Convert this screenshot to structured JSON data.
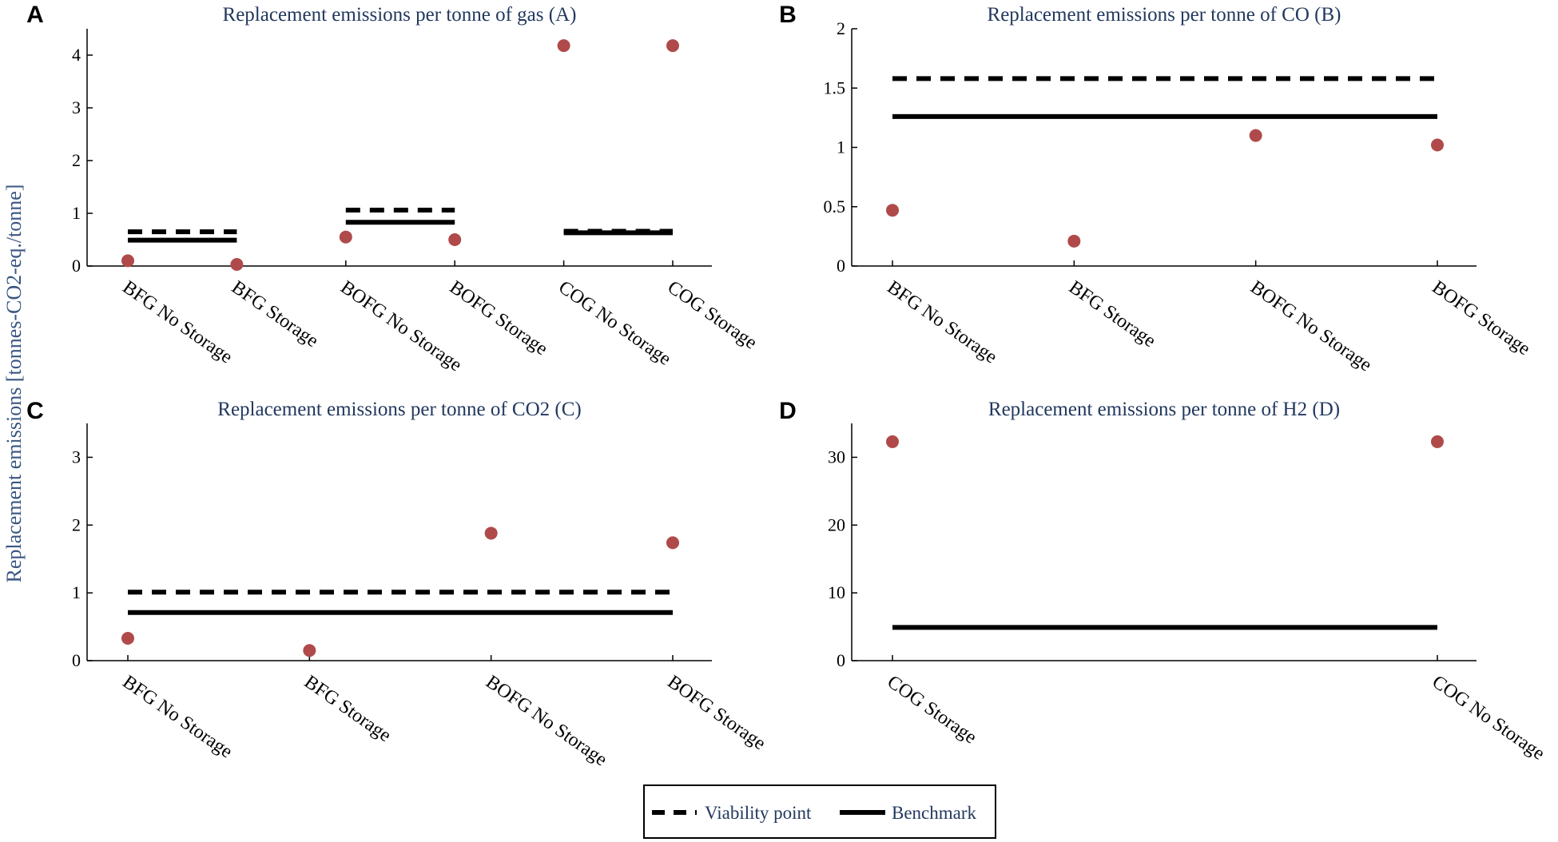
{
  "figure": {
    "ylabel": "Replacement emissions [tonnes-CO2-eq./tonne]",
    "point_color": "#b04a4a",
    "title_color": "#22385e"
  },
  "legend": {
    "items": [
      {
        "label": "Viability point",
        "style": "dashed"
      },
      {
        "label": "Benchmark",
        "style": "solid"
      }
    ]
  },
  "chart_data": [
    {
      "letter": "A",
      "type": "scatter",
      "title": "Replacement emissions per tonne of gas (A)",
      "ylim": [
        0,
        4.5
      ],
      "yticks": [
        0,
        1,
        2,
        3,
        4
      ],
      "categories": [
        "BFG No Storage",
        "BFG Storage",
        "BOFG No Storage",
        "BOFG Storage",
        "COG No Storage",
        "COG Storage"
      ],
      "points": [
        0.1,
        0.03,
        0.55,
        0.5,
        4.18,
        4.18
      ],
      "viability": [
        {
          "from": 0,
          "to": 1,
          "value": 0.65
        },
        {
          "from": 2,
          "to": 3,
          "value": 1.06
        },
        {
          "from": 4,
          "to": 5,
          "value": 0.66
        }
      ],
      "benchmark": [
        {
          "from": 0,
          "to": 1,
          "value": 0.49
        },
        {
          "from": 2,
          "to": 3,
          "value": 0.83
        },
        {
          "from": 4,
          "to": 5,
          "value": 0.63
        }
      ]
    },
    {
      "letter": "B",
      "type": "scatter",
      "title": "Replacement emissions per tonne of CO (B)",
      "ylim": [
        0,
        2
      ],
      "yticks": [
        0,
        0.5,
        1,
        1.5,
        2
      ],
      "categories": [
        "BFG No Storage",
        "BFG Storage",
        "BOFG No Storage",
        "BOFG Storage"
      ],
      "points": [
        0.47,
        0.21,
        1.1,
        1.02
      ],
      "viability": [
        {
          "from": 0,
          "to": 3,
          "value": 1.58
        }
      ],
      "benchmark": [
        {
          "from": 0,
          "to": 3,
          "value": 1.26
        }
      ]
    },
    {
      "letter": "C",
      "type": "scatter",
      "title": "Replacement emissions per tonne of CO2 (C)",
      "ylim": [
        0,
        3.5
      ],
      "yticks": [
        0,
        1,
        2,
        3
      ],
      "categories": [
        "BFG No Storage",
        "BFG Storage",
        "BOFG No Storage",
        "BOFG Storage"
      ],
      "points": [
        0.33,
        0.15,
        1.88,
        1.74
      ],
      "viability": [
        {
          "from": 0,
          "to": 3,
          "value": 1.01
        }
      ],
      "benchmark": [
        {
          "from": 0,
          "to": 3,
          "value": 0.71
        }
      ]
    },
    {
      "letter": "D",
      "type": "scatter",
      "title": "Replacement emissions per tonne of H2 (D)",
      "ylim": [
        0,
        35
      ],
      "yticks": [
        0,
        10,
        20,
        30
      ],
      "categories": [
        "COG Storage",
        "COG No Storage"
      ],
      "points": [
        32.3,
        32.3
      ],
      "viability": [],
      "benchmark": [
        {
          "from": 0,
          "to": 1,
          "value": 4.9
        }
      ]
    }
  ]
}
